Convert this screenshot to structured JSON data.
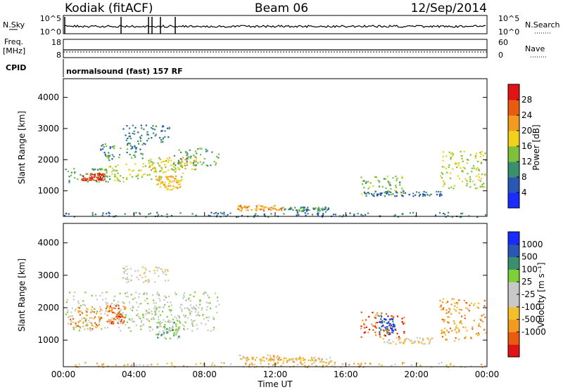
{
  "header": {
    "station": "Kodiak (fitACF)",
    "beam": "Beam 06",
    "date": "12/Sep/2014"
  },
  "top_strip": {
    "left_label": "N.Sky",
    "right_label": "N.Search",
    "left_ticks": [
      "10^5",
      "10^0"
    ],
    "right_ticks": [
      "10^5",
      "10^0"
    ]
  },
  "freq_strip": {
    "left_label_1": "Freq.",
    "left_label_2": "[MHz]",
    "left_ticks": [
      "18",
      "8"
    ],
    "right_label": "Nave",
    "right_ticks": [
      "60",
      "0"
    ]
  },
  "cpid": {
    "label": "CPID",
    "value": "normalsound (fast) 157 RF"
  },
  "colors": {
    "power": [
      "#1a2bff",
      "#2a56b4",
      "#3a8f6e",
      "#7fbf3a",
      "#f0d21c",
      "#f39a20",
      "#ea5b12",
      "#e01414"
    ],
    "velocity": [
      "#e01414",
      "#ea5b12",
      "#f39a20",
      "#f2c02c",
      "#c8c8c8",
      "#c8c8c8",
      "#7fcf3a",
      "#3a8f6e",
      "#2a56b4",
      "#1a2bff"
    ]
  },
  "chart_data": [
    {
      "type": "heatmap",
      "name": "power-panel",
      "ylabel": "Slant Range [km]",
      "xlabel": "",
      "ylim": [
        180,
        4600
      ],
      "yticks": [
        "1000",
        "2000",
        "3000",
        "4000"
      ],
      "ytick_values": [
        1000,
        2000,
        3000,
        4000
      ],
      "xlim": [
        0,
        24
      ],
      "colorbar": {
        "label": "Power [dB]",
        "range": [
          0,
          32
        ],
        "ticks": [
          "4",
          "8",
          "12",
          "16",
          "20",
          "24",
          "28"
        ],
        "tick_values": [
          4,
          8,
          12,
          16,
          20,
          24,
          28
        ]
      },
      "regions": [
        {
          "t0": 0.1,
          "t1": 2.6,
          "r0": 1300,
          "r1": 1750,
          "v": 10
        },
        {
          "t0": 1.0,
          "t1": 2.3,
          "r0": 1350,
          "r1": 1600,
          "v": 26
        },
        {
          "t0": 2.5,
          "t1": 6.8,
          "r0": 1300,
          "r1": 1900,
          "v": 14
        },
        {
          "t0": 4.8,
          "t1": 7.6,
          "r0": 1700,
          "r1": 2100,
          "v": 16
        },
        {
          "t0": 5.2,
          "t1": 6.6,
          "r0": 1050,
          "r1": 1500,
          "v": 18
        },
        {
          "t0": 2.0,
          "t1": 4.5,
          "r0": 2000,
          "r1": 2600,
          "v": 8
        },
        {
          "t0": 3.3,
          "t1": 6.0,
          "r0": 2500,
          "r1": 3150,
          "v": 6
        },
        {
          "t0": 6.2,
          "t1": 8.8,
          "r0": 1800,
          "r1": 2400,
          "v": 10
        },
        {
          "t0": 9.8,
          "t1": 12.4,
          "r0": 380,
          "r1": 560,
          "v": 20
        },
        {
          "t0": 12.4,
          "t1": 15.0,
          "r0": 350,
          "r1": 500,
          "v": 8
        },
        {
          "t0": 16.8,
          "t1": 19.3,
          "r0": 900,
          "r1": 1500,
          "v": 12
        },
        {
          "t0": 17.0,
          "t1": 21.5,
          "r0": 850,
          "r1": 1000,
          "v": 5
        },
        {
          "t0": 21.3,
          "t1": 23.9,
          "r0": 1100,
          "r1": 2300,
          "v": 14
        },
        {
          "t0": 0.0,
          "t1": 24.0,
          "r0": 180,
          "r1": 330,
          "v": 6
        }
      ]
    },
    {
      "type": "heatmap",
      "name": "velocity-panel",
      "ylabel": "Slant Range [km]",
      "xlabel": "Time UT",
      "ylim": [
        180,
        4600
      ],
      "yticks": [
        "1000",
        "2000",
        "3000",
        "4000"
      ],
      "ytick_values": [
        1000,
        2000,
        3000,
        4000
      ],
      "xlim": [
        0,
        24
      ],
      "xticks": [
        "00:00",
        "04:00",
        "08:00",
        "12:00",
        "16:00",
        "20:00",
        "00:00"
      ],
      "xtick_values": [
        0,
        4,
        8,
        12,
        16,
        20,
        24
      ],
      "colorbar": {
        "label": "Velocity [m s⁻¹]",
        "ticks": [
          "1000",
          "500",
          "100",
          "25",
          "-25",
          "-100",
          "-500",
          "-1000"
        ]
      },
      "regions": [
        {
          "t0": 0.1,
          "t1": 8.8,
          "r0": 1300,
          "r1": 2500,
          "v": 5
        },
        {
          "t0": 0.3,
          "t1": 2.2,
          "r0": 1350,
          "r1": 2050,
          "v": 2
        },
        {
          "t0": 2.3,
          "t1": 3.5,
          "r0": 1500,
          "r1": 2100,
          "v": 1
        },
        {
          "t0": 5.2,
          "t1": 6.6,
          "r0": 1050,
          "r1": 1600,
          "v": 6
        },
        {
          "t0": 3.3,
          "t1": 6.0,
          "r0": 2800,
          "r1": 3300,
          "v": 4
        },
        {
          "t0": 9.8,
          "t1": 12.4,
          "r0": 380,
          "r1": 560,
          "v": 3
        },
        {
          "t0": 12.4,
          "t1": 15.2,
          "r0": 330,
          "r1": 500,
          "v": 3
        },
        {
          "t0": 16.8,
          "t1": 19.3,
          "r0": 1100,
          "r1": 1900,
          "v": 1
        },
        {
          "t0": 17.8,
          "t1": 18.8,
          "r0": 1200,
          "r1": 1800,
          "v": 8
        },
        {
          "t0": 18.0,
          "t1": 21.0,
          "r0": 900,
          "r1": 1100,
          "v": 4
        },
        {
          "t0": 21.3,
          "t1": 23.9,
          "r0": 1000,
          "r1": 2300,
          "v": 2
        },
        {
          "t0": 0.0,
          "t1": 24.0,
          "r0": 180,
          "r1": 330,
          "v": 3
        }
      ]
    }
  ]
}
